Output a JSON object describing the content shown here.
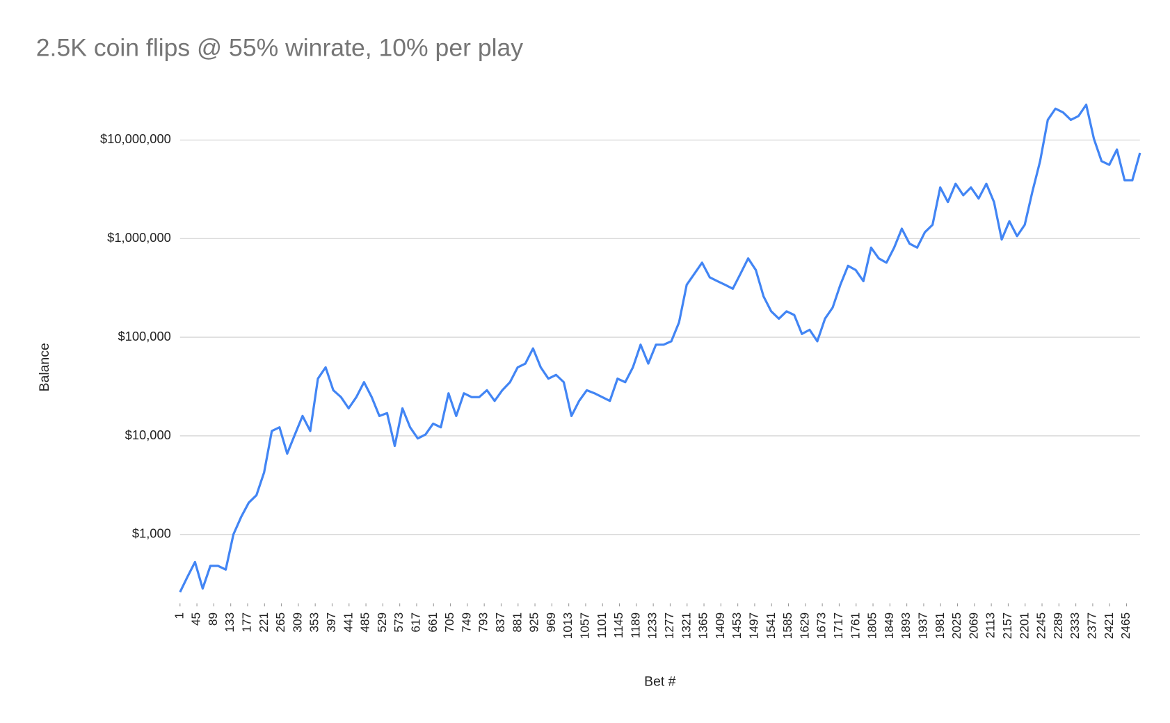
{
  "chart_data": {
    "type": "line",
    "title": "2.5K coin flips @ 55% winrate, 10% per play",
    "xlabel": "Bet #",
    "ylabel": "Balance",
    "log_y": true,
    "grid": true,
    "xlim": [
      1,
      2500
    ],
    "ylim": [
      200,
      30000000
    ],
    "xticks": [
      1,
      45,
      89,
      133,
      177,
      221,
      265,
      309,
      353,
      397,
      441,
      485,
      529,
      573,
      617,
      661,
      705,
      749,
      793,
      837,
      881,
      925,
      969,
      1013,
      1057,
      1101,
      1145,
      1189,
      1233,
      1277,
      1321,
      1365,
      1409,
      1453,
      1497,
      1541,
      1585,
      1629,
      1673,
      1717,
      1761,
      1805,
      1849,
      1893,
      1937,
      1981,
      2025,
      2069,
      2113,
      2157,
      2201,
      2245,
      2289,
      2333,
      2377,
      2421,
      2465
    ],
    "yticks": [
      {
        "value": 1000,
        "label": "$1,000"
      },
      {
        "value": 10000,
        "label": "$10,000"
      },
      {
        "value": 100000,
        "label": "$100,000"
      },
      {
        "value": 1000000,
        "label": "$1,000,000"
      },
      {
        "value": 10000000,
        "label": "$10,000,000"
      }
    ],
    "x": [
      1,
      20,
      40,
      60,
      80,
      100,
      120,
      140,
      160,
      180,
      200,
      220,
      240,
      260,
      280,
      300,
      320,
      340,
      360,
      380,
      400,
      420,
      440,
      460,
      480,
      500,
      520,
      540,
      560,
      580,
      600,
      620,
      640,
      660,
      680,
      700,
      720,
      740,
      760,
      780,
      800,
      820,
      840,
      860,
      880,
      900,
      920,
      940,
      960,
      980,
      1000,
      1020,
      1040,
      1060,
      1080,
      1100,
      1120,
      1140,
      1160,
      1180,
      1200,
      1220,
      1240,
      1260,
      1280,
      1300,
      1320,
      1340,
      1360,
      1380,
      1400,
      1420,
      1440,
      1460,
      1480,
      1500,
      1520,
      1540,
      1560,
      1580,
      1600,
      1620,
      1640,
      1660,
      1680,
      1700,
      1720,
      1740,
      1760,
      1780,
      1800,
      1820,
      1840,
      1860,
      1880,
      1900,
      1920,
      1940,
      1960,
      1980,
      2000,
      2020,
      2040,
      2060,
      2080,
      2100,
      2120,
      2140,
      2160,
      2180,
      2200,
      2220,
      2240,
      2260,
      2280,
      2300,
      2320,
      2340,
      2360,
      2380,
      2400,
      2420,
      2440,
      2460,
      2480,
      2500
    ],
    "series": [
      {
        "color": "#4285f4",
        "values": [
          260,
          369,
          525,
          283,
          480,
          480,
          440,
          1000,
          1500,
          2100,
          2500,
          4270,
          11200,
          12200,
          6600,
          10300,
          15900,
          11200,
          38000,
          49500,
          29000,
          24700,
          19000,
          24700,
          35000,
          24700,
          15900,
          17000,
          7900,
          19000,
          12200,
          9400,
          10300,
          13300,
          12200,
          27000,
          15900,
          27000,
          24700,
          24700,
          29000,
          22600,
          29000,
          35000,
          49500,
          54000,
          77000,
          49500,
          38000,
          41500,
          35000,
          15900,
          22600,
          29000,
          27000,
          24700,
          22600,
          38000,
          35000,
          49500,
          84000,
          54000,
          84000,
          84000,
          91000,
          141000,
          340000,
          440000,
          570000,
          405000,
          370000,
          340000,
          310000,
          440000,
          630000,
          480000,
          260000,
          183000,
          154000,
          183000,
          168000,
          108000,
          119000,
          91000,
          154000,
          200000,
          340000,
          530000,
          480000,
          370000,
          810000,
          630000,
          570000,
          810000,
          1260000,
          890000,
          810000,
          1160000,
          1380000,
          3300000,
          2350000,
          3600000,
          2750000,
          3300000,
          2550000,
          3600000,
          2350000,
          980000,
          1500000,
          1060000,
          1380000,
          3000000,
          6100000,
          16000000,
          20800000,
          19000000,
          16000000,
          17500000,
          22800000,
          10300000,
          6100000,
          5600000,
          8000000,
          3900000,
          3900000,
          7400000
        ]
      }
    ]
  }
}
